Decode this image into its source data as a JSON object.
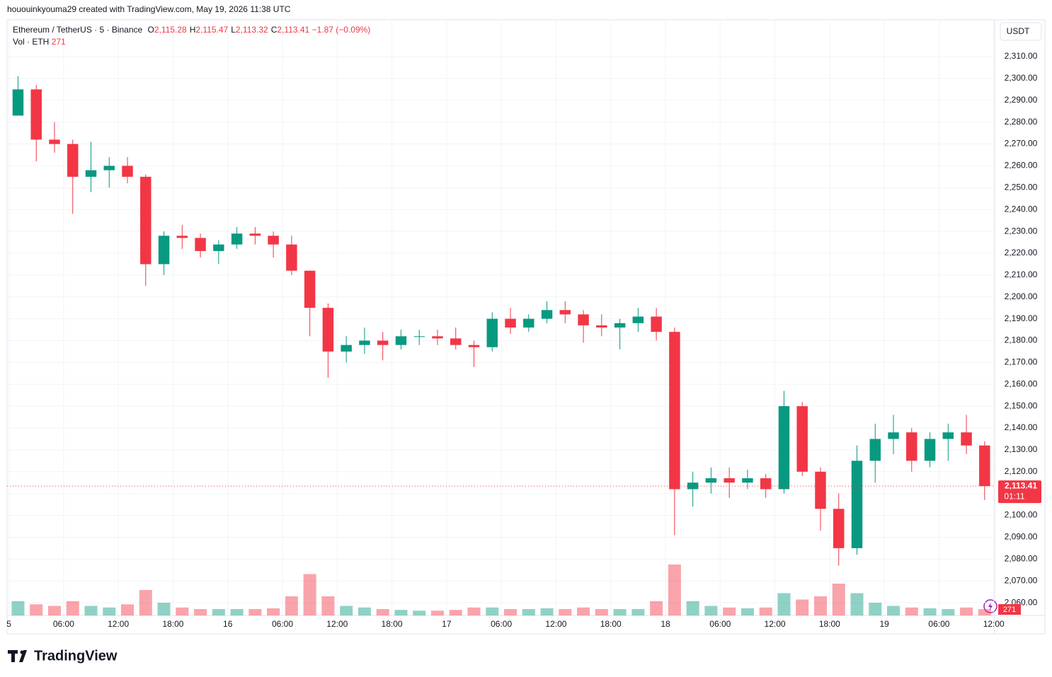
{
  "header": {
    "credit": "hououinkyouma29 created with TradingView.com, May 19, 2026 11:38 UTC"
  },
  "footer": {
    "brand": "TradingView"
  },
  "chart_data": {
    "type": "candlestick",
    "title": "Ethereum / TetherUS · 5 · Binance",
    "ohlc_legend": [
      {
        "key": "O",
        "value": "2,115.28"
      },
      {
        "key": "H",
        "value": "2,115.47"
      },
      {
        "key": "L",
        "value": "2,113.32"
      },
      {
        "key": "C",
        "value": "2,113.41"
      }
    ],
    "change": "−1.87 (−0.09%)",
    "volume_legend": {
      "name": "Vol · ETH",
      "value": "271"
    },
    "currency": "USDT",
    "up_color": "#089981",
    "down_color": "#f23645",
    "grid": true,
    "x": [
      1,
      3,
      5,
      7,
      9,
      11,
      13,
      15,
      17,
      19,
      21,
      23,
      25,
      27,
      29,
      31,
      33,
      35,
      37,
      39,
      41,
      43,
      45,
      47,
      49,
      51,
      53,
      55,
      57,
      59,
      61,
      63,
      65,
      67,
      69,
      71,
      73,
      75,
      77,
      79,
      81,
      83,
      85,
      87,
      89,
      91,
      93,
      95,
      97,
      99,
      101,
      103,
      105,
      107
    ],
    "open": [
      2283,
      2295,
      2272,
      2270,
      2255,
      2258,
      2260,
      2255,
      2215,
      2228,
      2227,
      2221,
      2224,
      2229,
      2228,
      2224,
      2212,
      2195,
      2175,
      2178,
      2180,
      2178,
      2182,
      2182,
      2181,
      2178,
      2177,
      2190,
      2186,
      2190,
      2194,
      2192,
      2187,
      2186,
      2188,
      2191,
      2184,
      2112,
      2115,
      2117,
      2115,
      2117,
      2112,
      2150,
      2120,
      2103,
      2085,
      2125,
      2135,
      2138,
      2125,
      2135,
      2138,
      2132
    ],
    "high": [
      2301,
      2297,
      2280,
      2272,
      2271,
      2264,
      2264,
      2256,
      2230,
      2233,
      2229,
      2226,
      2232,
      2232,
      2230,
      2228,
      2212,
      2197,
      2182,
      2186,
      2184,
      2185,
      2185,
      2185,
      2186,
      2180,
      2193,
      2195,
      2192,
      2198,
      2198,
      2194,
      2192,
      2190,
      2195,
      2195,
      2186,
      2120,
      2122,
      2122,
      2121,
      2119,
      2157,
      2152,
      2122,
      2110,
      2132,
      2142,
      2146,
      2140,
      2138,
      2142,
      2146,
      2134
    ],
    "low": [
      2283,
      2262,
      2266,
      2238,
      2248,
      2250,
      2252,
      2205,
      2210,
      2222,
      2218,
      2215,
      2222,
      2224,
      2218,
      2210,
      2182,
      2163,
      2170,
      2174,
      2171,
      2176,
      2178,
      2178,
      2176,
      2168,
      2175,
      2183,
      2184,
      2188,
      2188,
      2179,
      2182,
      2176,
      2184,
      2180,
      2091,
      2104,
      2110,
      2108,
      2112,
      2108,
      2110,
      2118,
      2093,
      2077,
      2082,
      2115,
      2128,
      2120,
      2122,
      2125,
      2128,
      2107
    ],
    "close": [
      2295,
      2272,
      2270,
      2255,
      2258,
      2260,
      2255,
      2215,
      2228,
      2227,
      2221,
      2224,
      2229,
      2228,
      2224,
      2212,
      2195,
      2175,
      2178,
      2180,
      2178,
      2182,
      2182,
      2181,
      2178,
      2177,
      2190,
      2186,
      2190,
      2194,
      2192,
      2187,
      2186,
      2188,
      2191,
      2184,
      2112,
      2115,
      2117,
      2115,
      2117,
      2112,
      2150,
      2120,
      2103,
      2085,
      2125,
      2135,
      2138,
      2125,
      2135,
      2138,
      2132,
      2113.41
    ],
    "volume": [
      9000,
      7000,
      6000,
      9000,
      6000,
      5000,
      7000,
      16000,
      8000,
      5000,
      4000,
      4000,
      4000,
      4000,
      4500,
      12000,
      26000,
      12000,
      6000,
      5000,
      4000,
      3500,
      3000,
      3000,
      3500,
      5000,
      5000,
      4000,
      4000,
      4500,
      4000,
      5000,
      4000,
      4000,
      4000,
      9000,
      32000,
      9000,
      6000,
      5000,
      4500,
      5000,
      14000,
      10000,
      12000,
      20000,
      14000,
      8000,
      6000,
      5000,
      4500,
      4000,
      5000,
      4000
    ],
    "volume_lim": [
      0,
      40000
    ],
    "last_price_label": "2,113.41",
    "countdown": "01:11",
    "xlim": [
      -0.2,
      108.1
    ],
    "xticks": [
      {
        "value": 0,
        "label": "5"
      },
      {
        "value": 6,
        "label": "06:00"
      },
      {
        "value": 12,
        "label": "12:00"
      },
      {
        "value": 18,
        "label": "18:00"
      },
      {
        "value": 24,
        "label": "16"
      },
      {
        "value": 30,
        "label": "06:00"
      },
      {
        "value": 36,
        "label": "12:00"
      },
      {
        "value": 42,
        "label": "18:00"
      },
      {
        "value": 48,
        "label": "17"
      },
      {
        "value": 54,
        "label": "06:00"
      },
      {
        "value": 60,
        "label": "12:00"
      },
      {
        "value": 66,
        "label": "18:00"
      },
      {
        "value": 72,
        "label": "18"
      },
      {
        "value": 78,
        "label": "06:00"
      },
      {
        "value": 84,
        "label": "12:00"
      },
      {
        "value": 90,
        "label": "18:00"
      },
      {
        "value": 96,
        "label": "19"
      },
      {
        "value": 102,
        "label": "06:00"
      },
      {
        "value": 108,
        "label": "12:00"
      }
    ],
    "ylim": [
      2054.2,
      2326.2
    ],
    "yticks": [
      {
        "value": 2060,
        "label": "2,060.00"
      },
      {
        "value": 2070,
        "label": "2,070.00"
      },
      {
        "value": 2080,
        "label": "2,080.00"
      },
      {
        "value": 2090,
        "label": "2,090.00"
      },
      {
        "value": 2100,
        "label": "2,100.00"
      },
      {
        "value": 2110,
        "label": "2,110.00"
      },
      {
        "value": 2120,
        "label": "2,120.00"
      },
      {
        "value": 2130,
        "label": "2,130.00"
      },
      {
        "value": 2140,
        "label": "2,140.00"
      },
      {
        "value": 2150,
        "label": "2,150.00"
      },
      {
        "value": 2160,
        "label": "2,160.00"
      },
      {
        "value": 2170,
        "label": "2,170.00"
      },
      {
        "value": 2180,
        "label": "2,180.00"
      },
      {
        "value": 2190,
        "label": "2,190.00"
      },
      {
        "value": 2200,
        "label": "2,200.00"
      },
      {
        "value": 2210,
        "label": "2,210.00"
      },
      {
        "value": 2220,
        "label": "2,220.00"
      },
      {
        "value": 2230,
        "label": "2,230.00"
      },
      {
        "value": 2240,
        "label": "2,240.00"
      },
      {
        "value": 2250,
        "label": "2,250.00"
      },
      {
        "value": 2260,
        "label": "2,260.00"
      },
      {
        "value": 2270,
        "label": "2,270.00"
      },
      {
        "value": 2280,
        "label": "2,280.00"
      },
      {
        "value": 2290,
        "label": "2,290.00"
      },
      {
        "value": 2300,
        "label": "2,300.00"
      },
      {
        "value": 2310,
        "label": "2,310.00"
      }
    ]
  }
}
